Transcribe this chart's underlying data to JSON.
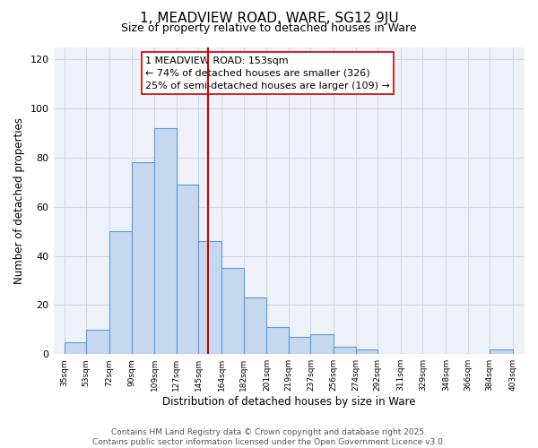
{
  "title": "1, MEADVIEW ROAD, WARE, SG12 9JU",
  "subtitle": "Size of property relative to detached houses in Ware",
  "xlabel": "Distribution of detached houses by size in Ware",
  "ylabel": "Number of detached properties",
  "bar_edges": [
    35,
    53,
    72,
    90,
    109,
    127,
    145,
    164,
    182,
    201,
    219,
    237,
    256,
    274,
    292,
    311,
    329,
    348,
    366,
    384,
    403
  ],
  "bar_heights": [
    5,
    10,
    50,
    78,
    92,
    69,
    46,
    35,
    23,
    11,
    7,
    8,
    3,
    2,
    0,
    0,
    0,
    0,
    0,
    2
  ],
  "tick_labels": [
    "35sqm",
    "53sqm",
    "72sqm",
    "90sqm",
    "109sqm",
    "127sqm",
    "145sqm",
    "164sqm",
    "182sqm",
    "201sqm",
    "219sqm",
    "237sqm",
    "256sqm",
    "274sqm",
    "292sqm",
    "311sqm",
    "329sqm",
    "348sqm",
    "366sqm",
    "384sqm",
    "403sqm"
  ],
  "bar_color": "#c5d8f0",
  "bar_edge_color": "#5b9bd5",
  "vline_x": 153,
  "vline_color": "#cc0000",
  "annotation_line1": "1 MEADVIEW ROAD: 153sqm",
  "annotation_line2": "← 74% of detached houses are smaller (326)",
  "annotation_line3": "25% of semi-detached houses are larger (109) →",
  "ylim": [
    0,
    125
  ],
  "yticks": [
    0,
    20,
    40,
    60,
    80,
    100,
    120
  ],
  "grid_color": "#d0d8e8",
  "background_color": "#eef2f8",
  "footer_text": "Contains HM Land Registry data © Crown copyright and database right 2025.\nContains public sector information licensed under the Open Government Licence v3.0.",
  "title_fontsize": 11,
  "subtitle_fontsize": 9,
  "annotation_fontsize": 8,
  "footer_fontsize": 6.5,
  "xlabel_fontsize": 8.5,
  "ylabel_fontsize": 8.5
}
